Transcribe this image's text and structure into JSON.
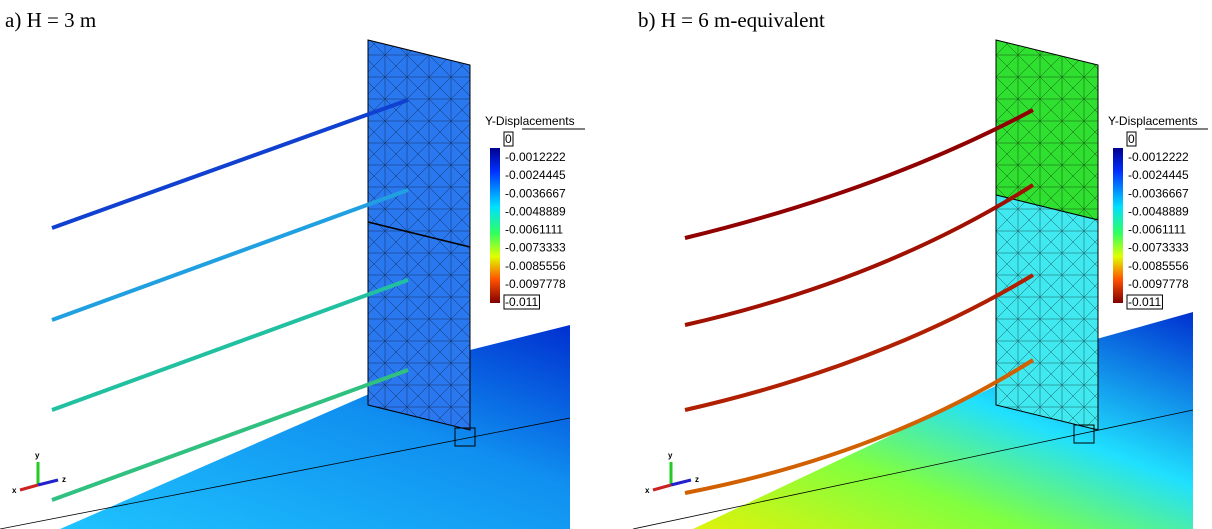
{
  "panels": [
    {
      "label": "a) H = 3 m",
      "legend": {
        "title": "Y-Displacements",
        "labels": [
          "0",
          "-0.0012222",
          "-0.0024445",
          "-0.0036667",
          "-0.0048889",
          "-0.0061111",
          "-0.0073333",
          "-0.0085556",
          "-0.0097778",
          "-0.011"
        ]
      },
      "triad": [
        "x",
        "y",
        "z"
      ]
    },
    {
      "label": "b) H = 6 m-equivalent",
      "legend": {
        "title": "Y-Displacements",
        "labels": [
          "0",
          "-0.0012222",
          "-0.0024445",
          "-0.0036667",
          "-0.0048889",
          "-0.0061111",
          "-0.0073333",
          "-0.0085556",
          "-0.0097778",
          "-0.011"
        ]
      },
      "triad": [
        "x",
        "y",
        "z"
      ]
    }
  ]
}
